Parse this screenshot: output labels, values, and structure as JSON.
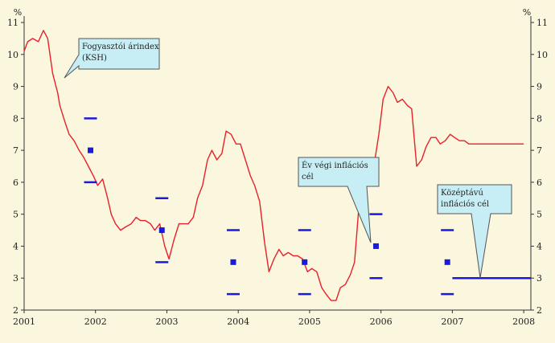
{
  "chart_data": {
    "type": "line",
    "ylabel_left": "%",
    "ylabel_right": "%",
    "ylim": [
      2,
      11
    ],
    "yticks": [
      "2",
      "3",
      "4",
      "5",
      "6",
      "7",
      "8",
      "9",
      "10",
      "11"
    ],
    "xlim": [
      2001,
      2008.1
    ],
    "xticks": [
      "2001",
      "2002",
      "2003",
      "2004",
      "2005",
      "2006",
      "2007",
      "2008"
    ],
    "grid": false,
    "colors": {
      "background": "#fbf6de",
      "cpi_line": "#e8202a",
      "target": "#1a1adb",
      "callout_fill": "#c8eef5",
      "callout_border": "#555555",
      "axis": "#333333"
    },
    "series": [
      {
        "name": "Fogyasztói árindex (KSH)",
        "kind": "line",
        "x": [
          2001.0,
          2001.05,
          2001.12,
          2001.2,
          2001.27,
          2001.33,
          2001.4,
          2001.47,
          2001.5,
          2001.57,
          2001.63,
          2001.7,
          2001.77,
          2001.83,
          2001.9,
          2001.97,
          2002.03,
          2002.1,
          2002.17,
          2002.22,
          2002.28,
          2002.35,
          2002.42,
          2002.5,
          2002.57,
          2002.63,
          2002.7,
          2002.77,
          2002.83,
          2002.9,
          2002.97,
          2003.03,
          2003.1,
          2003.17,
          2003.23,
          2003.3,
          2003.37,
          2003.43,
          2003.5,
          2003.57,
          2003.63,
          2003.7,
          2003.77,
          2003.83,
          2003.9,
          2003.97,
          2004.03,
          2004.1,
          2004.17,
          2004.23,
          2004.3,
          2004.37,
          2004.43,
          2004.5,
          2004.57,
          2004.63,
          2004.7,
          2004.77,
          2004.83,
          2004.9,
          2004.97,
          2005.03,
          2005.1,
          2005.17,
          2005.23,
          2005.3,
          2005.37,
          2005.43,
          2005.5,
          2005.57,
          2005.63,
          2005.7,
          2005.77,
          2005.83,
          2005.9,
          2005.97,
          2006.03,
          2006.1,
          2006.17,
          2006.23,
          2006.3,
          2006.37,
          2006.43,
          2006.5,
          2006.57,
          2006.63,
          2006.7,
          2006.77,
          2006.83,
          2006.9,
          2006.97,
          2007.03,
          2007.1,
          2007.17,
          2007.23,
          2007.3,
          2007.37,
          2007.43,
          2007.5,
          2007.57,
          2007.63,
          2007.7,
          2007.77,
          2007.83,
          2007.9,
          2007.97,
          2008.0
        ],
        "values": [
          10.1,
          10.4,
          10.5,
          10.4,
          10.75,
          10.5,
          9.4,
          8.8,
          8.4,
          7.9,
          7.5,
          7.3,
          7.0,
          6.8,
          6.5,
          6.2,
          5.9,
          6.1,
          5.5,
          5.0,
          4.7,
          4.5,
          4.6,
          4.7,
          4.9,
          4.8,
          4.8,
          4.7,
          4.5,
          4.7,
          4.0,
          3.6,
          4.2,
          4.7,
          4.7,
          4.7,
          4.9,
          5.5,
          5.9,
          6.7,
          7.0,
          6.7,
          6.9,
          7.6,
          7.5,
          7.2,
          7.2,
          6.7,
          6.2,
          5.9,
          5.4,
          4.1,
          3.2,
          3.6,
          3.9,
          3.7,
          3.8,
          3.7,
          3.7,
          3.6,
          3.2,
          3.3,
          3.2,
          2.7,
          2.5,
          2.3,
          2.3,
          2.7,
          2.8,
          3.1,
          3.5,
          5.5,
          6.3,
          6.4,
          6.5,
          7.5,
          8.6,
          9.0,
          8.8,
          8.5,
          8.6,
          8.4,
          8.3,
          6.5,
          6.7,
          7.1,
          7.4,
          7.4,
          7.2,
          7.3,
          7.5,
          7.4,
          7.3,
          7.3,
          7.2,
          7.2,
          7.2,
          7.2,
          7.2,
          7.2,
          7.2,
          7.2,
          7.2,
          7.2,
          7.2,
          7.2,
          7.2
        ]
      },
      {
        "name": "Év végi inflációs cél",
        "kind": "point_band",
        "points": [
          {
            "x": 2001.93,
            "value": 7.0,
            "low": 6.0,
            "high": 8.0
          },
          {
            "x": 2002.93,
            "value": 4.5,
            "low": 3.5,
            "high": 5.5
          },
          {
            "x": 2003.93,
            "value": 3.5,
            "low": 2.5,
            "high": 4.5
          },
          {
            "x": 2004.93,
            "value": 3.5,
            "low": 2.5,
            "high": 4.5
          },
          {
            "x": 2005.93,
            "value": 4.0,
            "low": 3.0,
            "high": 5.0
          },
          {
            "x": 2006.93,
            "value": 3.5,
            "low": 2.5,
            "high": 4.5
          }
        ]
      },
      {
        "name": "Középtávú inflációs cél",
        "kind": "hline",
        "x": [
          2007.0,
          2008.1
        ],
        "value": 3.0
      }
    ],
    "callouts": [
      {
        "lines": [
          "Fogyasztói árindex",
          "(KSH)"
        ]
      },
      {
        "lines": [
          "Év végi inflációs",
          "cél"
        ]
      },
      {
        "lines": [
          "Középtávú",
          "inflációs cél"
        ]
      }
    ]
  }
}
